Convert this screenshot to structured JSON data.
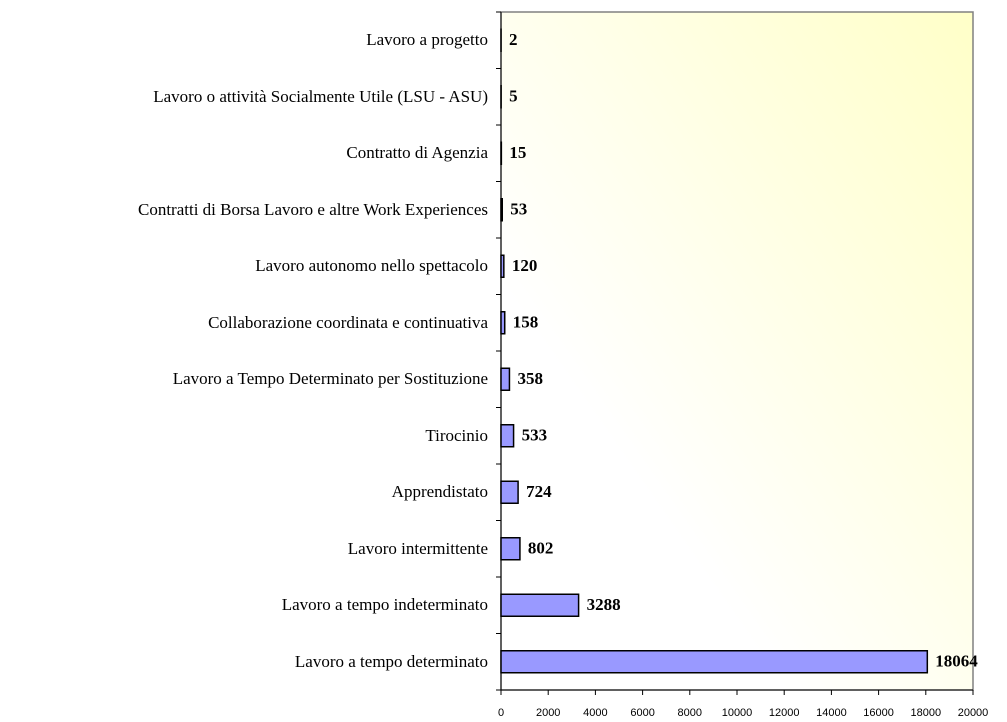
{
  "chart_data": {
    "type": "barh",
    "categories": [
      "Lavoro a progetto",
      "Lavoro o attività Socialmente Utile (LSU - ASU)",
      "Contratto di Agenzia",
      "Contratti di Borsa Lavoro e altre Work Experiences",
      "Lavoro autonomo nello spettacolo",
      "Collaborazione coordinata e continuativa",
      "Lavoro a Tempo Determinato  per Sostituzione",
      "Tirocinio",
      "Apprendistato",
      "Lavoro intermittente",
      "Lavoro a tempo indeterminato",
      "Lavoro a tempo determinato"
    ],
    "values": [
      2,
      5,
      15,
      53,
      120,
      158,
      358,
      533,
      724,
      802,
      3288,
      18064
    ],
    "color": "#9999ff",
    "xlim": [
      0,
      20000
    ],
    "xticks": [
      0,
      2000,
      4000,
      6000,
      8000,
      10000,
      12000,
      14000,
      16000,
      18000,
      20000
    ]
  }
}
